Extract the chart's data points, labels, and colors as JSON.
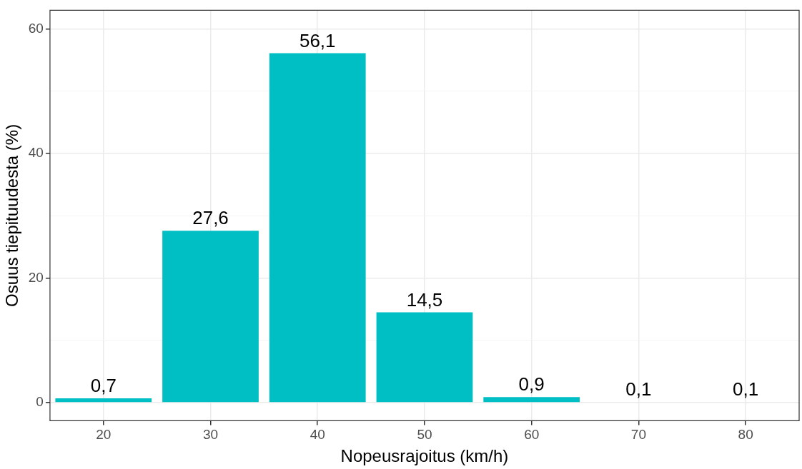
{
  "chart_data": {
    "type": "bar",
    "xlabel": "Nopeusrajoitus (km/h)",
    "ylabel": "Osuus tiepituudesta (%)",
    "categories": [
      "20",
      "30",
      "40",
      "50",
      "60",
      "70",
      "80"
    ],
    "values": [
      0.7,
      27.6,
      56.1,
      14.5,
      0.9,
      0.1,
      0.1
    ],
    "value_labels": [
      "0,7",
      "27,6",
      "56,1",
      "14,5",
      "0,9",
      "0,1",
      "0,1"
    ],
    "color": "#00bfc4",
    "ylim": [
      -2.9,
      63
    ],
    "yticks": [
      0,
      {
        "value": 10,
        "label": null
      },
      20,
      {
        "value": 30,
        "label": null
      },
      40,
      {
        "value": 50,
        "label": null
      },
      60
    ],
    "grid": true
  }
}
